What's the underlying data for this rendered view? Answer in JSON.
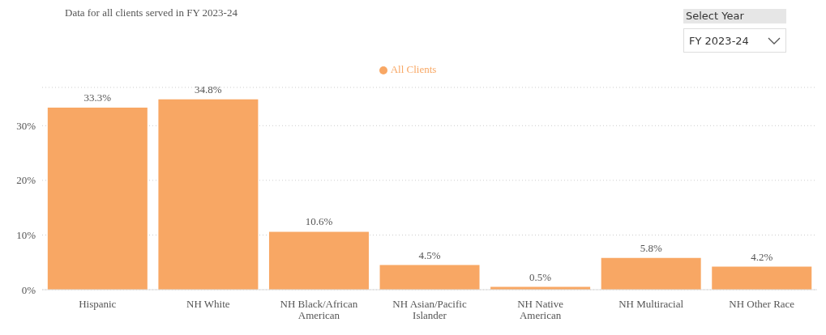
{
  "chart_data": {
    "type": "bar",
    "title": "Data for all clients served in FY 2023-24",
    "annotations": [
      "Select Year",
      "FY 2023-24"
    ],
    "categories": [
      "Hispanic",
      "NH White",
      "NH Black/African American",
      "NH Asian/Pacific Islander",
      "NH Native American",
      "NH Multiracial",
      "NH Other Race"
    ],
    "series": [
      {
        "name": "All Clients",
        "color": "#f8a764",
        "values": [
          33.3,
          34.8,
          10.6,
          4.5,
          0.5,
          5.8,
          4.2
        ],
        "value_labels": [
          "33.3%",
          "34.8%",
          "10.6%",
          "4.5%",
          "0.5%",
          "5.8%",
          "4.2%"
        ]
      }
    ],
    "ylim": [
      0,
      37
    ],
    "yticks": [
      {
        "value": 0,
        "label": "0%"
      },
      {
        "value": 10,
        "label": "10%"
      },
      {
        "value": 20,
        "label": "20%"
      },
      {
        "value": 30,
        "label": "30%"
      }
    ],
    "grid": "y",
    "legend": "top"
  }
}
